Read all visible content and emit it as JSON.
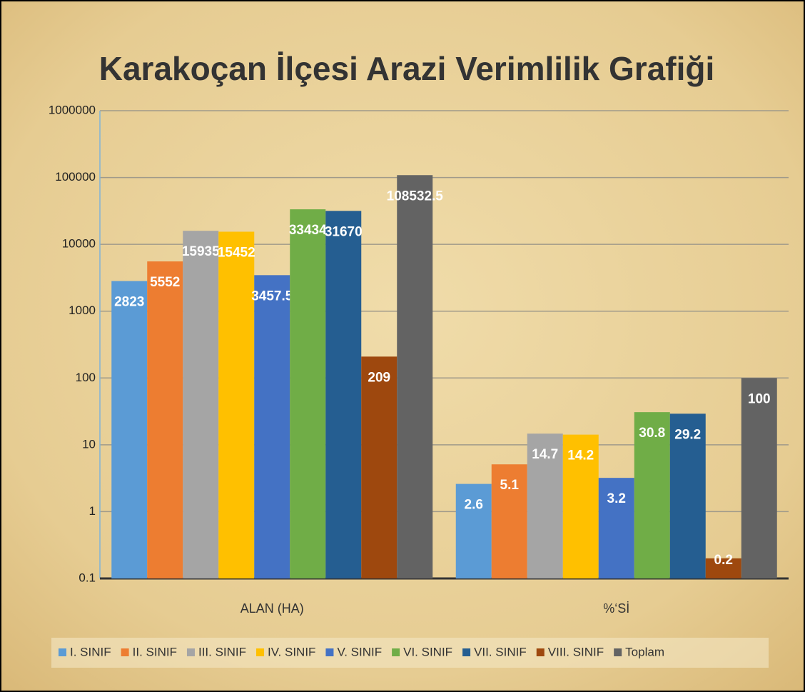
{
  "chart_data": {
    "type": "bar",
    "title": "Karakoçan İlçesi Arazi Verimlilik Grafiği",
    "categories": [
      "ALAN (HA)",
      "%‘Sİ"
    ],
    "yscale": "log",
    "ylim": [
      0.1,
      1000000
    ],
    "yticks": [
      0.1,
      1,
      10,
      100,
      1000,
      10000,
      100000,
      1000000
    ],
    "grid": true,
    "legend": "bottom",
    "series": [
      {
        "name": "I. SINIF",
        "color": "#5b9bd5",
        "values": [
          2823,
          2.6
        ]
      },
      {
        "name": "II. SINIF",
        "color": "#ed7d31",
        "values": [
          5552,
          5.1
        ]
      },
      {
        "name": "III. SINIF",
        "color": "#a5a5a5",
        "values": [
          15935,
          14.7
        ]
      },
      {
        "name": "IV. SINIF",
        "color": "#ffc000",
        "values": [
          15452,
          14.2
        ]
      },
      {
        "name": "V. SINIF",
        "color": "#4472c4",
        "values": [
          3457.5,
          3.2
        ]
      },
      {
        "name": "VI. SINIF",
        "color": "#70ad47",
        "values": [
          33434,
          30.8
        ]
      },
      {
        "name": "VII. SINIF",
        "color": "#255e91",
        "values": [
          31670,
          29.2
        ]
      },
      {
        "name": "VIII. SINIF",
        "color": "#9e480e",
        "values": [
          209,
          0.2
        ]
      },
      {
        "name": "Toplam",
        "color": "#636363",
        "values": [
          108532.5,
          100
        ]
      }
    ]
  }
}
